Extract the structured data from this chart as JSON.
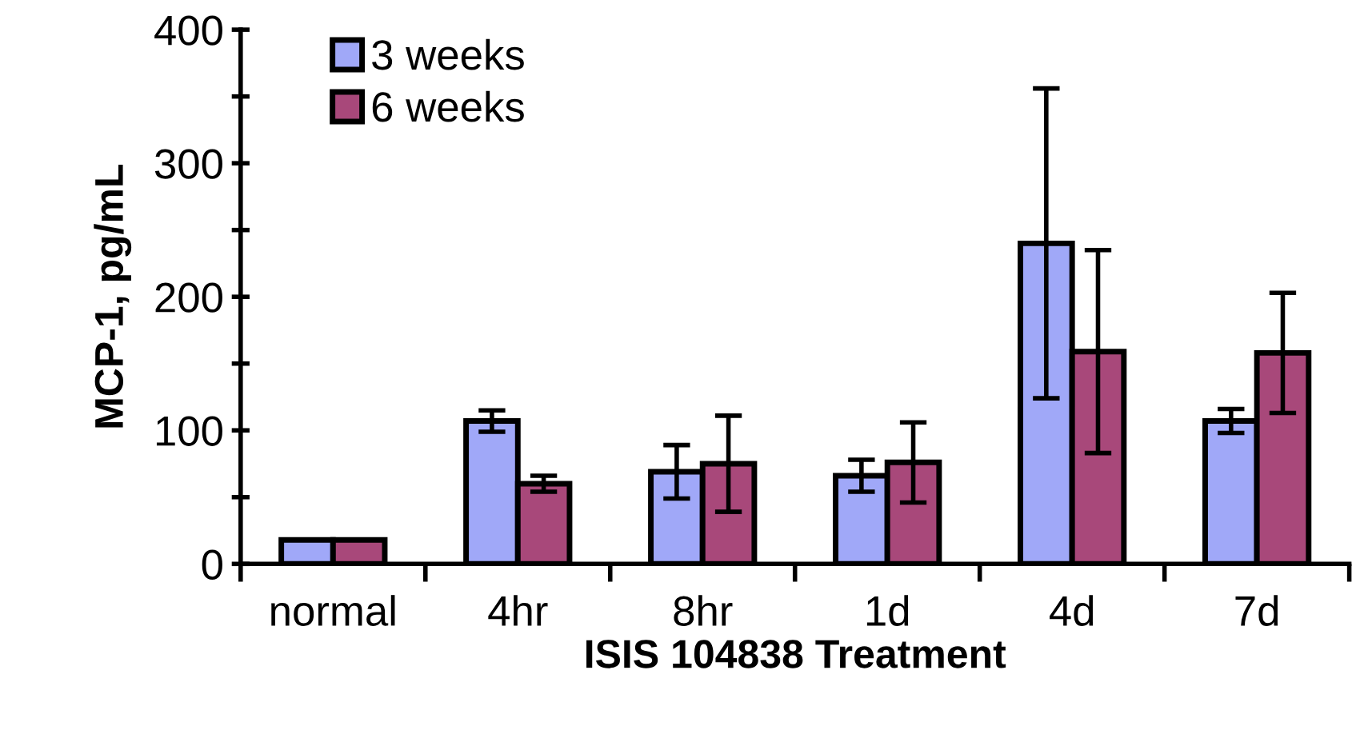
{
  "chart_data": {
    "type": "bar",
    "xlabel": "ISIS 104838 Treatment",
    "ylabel": "MCP-1, pg/mL",
    "categories": [
      "normal",
      "4hr",
      "8hr",
      "1d",
      "4d",
      "7d"
    ],
    "series": [
      {
        "name": "3 weeks",
        "color": "#a0a8f8",
        "values": [
          18,
          107,
          69,
          66,
          240,
          107
        ],
        "errors": [
          null,
          8,
          20,
          12,
          116,
          9
        ]
      },
      {
        "name": "6 weeks",
        "color": "#a8487a",
        "values": [
          18,
          60,
          75,
          76,
          159,
          158
        ],
        "errors": [
          null,
          6,
          36,
          30,
          76,
          45
        ]
      }
    ],
    "ylim": [
      0,
      400
    ],
    "yticks": [
      0,
      {
        "value": 50,
        "label": null
      },
      100,
      {
        "value": 150,
        "label": null
      },
      200,
      {
        "value": 250,
        "label": null
      },
      300,
      {
        "value": 350,
        "label": null
      },
      400
    ],
    "grid": false,
    "legend": "top left"
  }
}
